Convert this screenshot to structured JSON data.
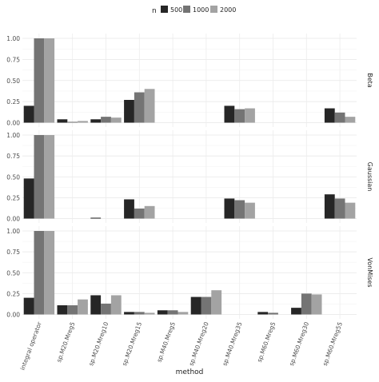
{
  "chart_data": {
    "type": "bar",
    "legend": {
      "title": "n",
      "placement": "top",
      "entries": [
        {
          "label": "500",
          "color": "#262626"
        },
        {
          "label": "1000",
          "color": "#747474"
        },
        {
          "label": "2000",
          "color": "#a3a3a3"
        }
      ]
    },
    "xlabel": "method",
    "ylabel": "",
    "ylim": [
      0,
      1.05
    ],
    "yticks": [
      "0.00",
      "0.25",
      "0.50",
      "0.75",
      "1.00"
    ],
    "grid": true,
    "categories": [
      "integral operator",
      "sp.M20.Mreg5",
      "sp.M20.Mreg10",
      "sp.M20.Mreg15",
      "sp.M40.Mreg5",
      "sp.M40.Mreg20",
      "sp.M40.Mreg35",
      "sp.M60.Mreg5",
      "sp.M60.Mreg30",
      "sp.M60.Mreg55"
    ],
    "panels": [
      {
        "name": "Beta",
        "series": [
          {
            "name": "500",
            "values": [
              0.2,
              0.04,
              0.04,
              0.27,
              null,
              null,
              0.2,
              null,
              null,
              0.17
            ]
          },
          {
            "name": "1000",
            "values": [
              1.0,
              0.01,
              0.07,
              0.36,
              null,
              null,
              0.16,
              null,
              null,
              0.12
            ]
          },
          {
            "name": "2000",
            "values": [
              1.0,
              0.02,
              0.06,
              0.4,
              null,
              null,
              0.17,
              null,
              null,
              0.07
            ]
          }
        ]
      },
      {
        "name": "Gaussian",
        "series": [
          {
            "name": "500",
            "values": [
              0.48,
              null,
              0.01,
              0.23,
              null,
              null,
              0.24,
              null,
              null,
              0.29
            ]
          },
          {
            "name": "1000",
            "values": [
              1.0,
              null,
              null,
              0.12,
              null,
              null,
              0.22,
              null,
              null,
              0.24
            ]
          },
          {
            "name": "2000",
            "values": [
              1.0,
              null,
              null,
              0.15,
              null,
              null,
              0.19,
              null,
              null,
              0.19
            ]
          }
        ]
      },
      {
        "name": "VonMises",
        "series": [
          {
            "name": "500",
            "values": [
              0.2,
              0.11,
              0.23,
              0.03,
              0.05,
              0.21,
              null,
              0.03,
              0.08,
              null
            ]
          },
          {
            "name": "1000",
            "values": [
              1.0,
              0.11,
              0.13,
              0.03,
              0.05,
              0.21,
              null,
              0.02,
              0.25,
              null
            ]
          },
          {
            "name": "2000",
            "values": [
              1.0,
              0.18,
              0.23,
              0.02,
              0.03,
              0.29,
              null,
              null,
              0.24,
              null
            ]
          }
        ]
      }
    ]
  }
}
